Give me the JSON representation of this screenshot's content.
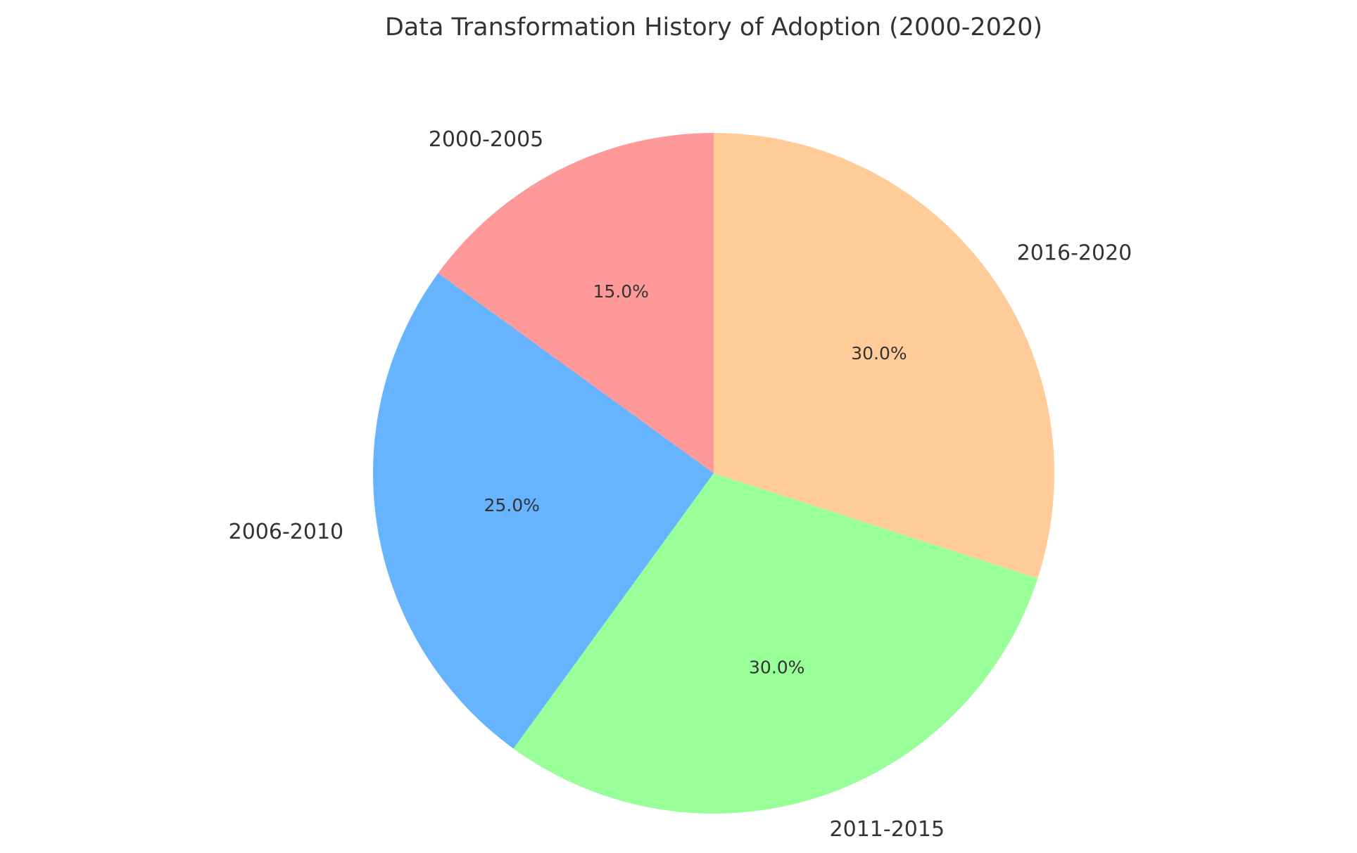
{
  "chart_data": {
    "type": "pie",
    "title": "Data Transformation History of Adoption (2000-2020)",
    "start_angle_deg": 90,
    "direction": "counterclockwise",
    "slices": [
      {
        "label": "2000-2005",
        "value": 15.0,
        "pct_text": "15.0%",
        "color": "#ff9999"
      },
      {
        "label": "2006-2010",
        "value": 25.0,
        "pct_text": "25.0%",
        "color": "#66b3ff"
      },
      {
        "label": "2011-2015",
        "value": 30.0,
        "pct_text": "30.0%",
        "color": "#99ff99"
      },
      {
        "label": "2016-2020",
        "value": 30.0,
        "pct_text": "30.0%",
        "color": "#ffcc99"
      }
    ]
  }
}
